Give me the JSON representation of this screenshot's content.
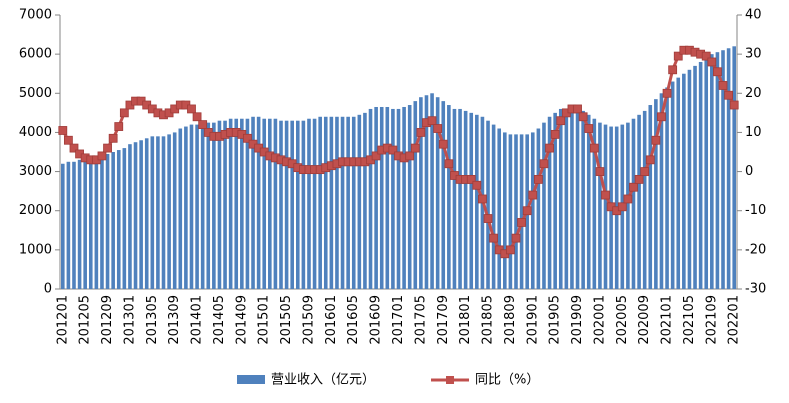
{
  "chart_data": {
    "type": "bar_line",
    "categories": [
      "201201",
      null,
      null,
      null,
      "201205",
      null,
      null,
      null,
      "201209",
      null,
      null,
      null,
      "201301",
      null,
      null,
      null,
      "201305",
      null,
      null,
      null,
      "201309",
      null,
      null,
      null,
      "201401",
      null,
      null,
      null,
      "201405",
      null,
      null,
      null,
      "201409",
      null,
      null,
      null,
      "201501",
      null,
      null,
      null,
      "201505",
      null,
      null,
      null,
      "201509",
      null,
      null,
      null,
      "201601",
      null,
      null,
      null,
      "201605",
      null,
      null,
      null,
      "201609",
      null,
      null,
      null,
      "201701",
      null,
      null,
      null,
      "201705",
      null,
      null,
      null,
      "201709",
      null,
      null,
      null,
      "201801",
      null,
      null,
      null,
      "201805",
      null,
      null,
      null,
      "201809",
      null,
      null,
      null,
      "201901",
      null,
      null,
      null,
      "201905",
      null,
      null,
      null,
      "201909",
      null,
      null,
      null,
      "202001",
      null,
      null,
      null,
      "202005",
      null,
      null,
      null,
      "202009",
      null,
      null,
      null,
      "202101",
      null,
      null,
      null,
      "202105",
      null,
      null,
      null,
      "202109",
      null,
      null,
      null,
      "202201"
    ],
    "series": [
      {
        "name": "营业收入（亿元）",
        "type": "bar",
        "color": "#4f81bd",
        "values": [
          3200,
          3250,
          3250,
          3300,
          3300,
          3300,
          3350,
          3400,
          3450,
          3500,
          3550,
          3600,
          3700,
          3750,
          3800,
          3850,
          3900,
          3900,
          3900,
          3950,
          4000,
          4100,
          4150,
          4200,
          4200,
          4200,
          4250,
          4250,
          4300,
          4300,
          4350,
          4350,
          4350,
          4350,
          4400,
          4400,
          4350,
          4350,
          4350,
          4300,
          4300,
          4300,
          4300,
          4300,
          4350,
          4350,
          4400,
          4400,
          4400,
          4400,
          4400,
          4400,
          4400,
          4450,
          4500,
          4600,
          4650,
          4650,
          4650,
          4600,
          4600,
          4650,
          4700,
          4800,
          4900,
          4950,
          5000,
          4900,
          4800,
          4700,
          4600,
          4600,
          4550,
          4500,
          4450,
          4400,
          4300,
          4200,
          4100,
          4000,
          3950,
          3950,
          3950,
          3950,
          4000,
          4100,
          4250,
          4400,
          4500,
          4600,
          4600,
          4650,
          4600,
          4550,
          4450,
          4350,
          4250,
          4200,
          4150,
          4150,
          4200,
          4250,
          4350,
          4450,
          4550,
          4700,
          4850,
          5000,
          5150,
          5300,
          5400,
          5500,
          5600,
          5700,
          5800,
          5900,
          6000,
          6050,
          6100,
          6150,
          6200
        ]
      },
      {
        "name": "同比（%）",
        "type": "line",
        "axis": "y2",
        "color": "#c0504d",
        "values": [
          10.5,
          8,
          6,
          4.5,
          3.5,
          3,
          3,
          4,
          6,
          8.5,
          11.5,
          15,
          17,
          18,
          18,
          17,
          16,
          15,
          14.5,
          15,
          16,
          17,
          17,
          16,
          14,
          12,
          10,
          9,
          9,
          9.5,
          10,
          10,
          9.5,
          8.5,
          7,
          6,
          5,
          4,
          3.5,
          3,
          2.5,
          2,
          1,
          0.5,
          0.5,
          0.5,
          0.5,
          1,
          1.5,
          2,
          2.5,
          2.5,
          2.5,
          2.5,
          2.5,
          3,
          4,
          5.5,
          6,
          5.5,
          4,
          3.5,
          4,
          6,
          10,
          12.5,
          13,
          11,
          7,
          2,
          -1,
          -2,
          -2,
          -2,
          -3.5,
          -7,
          -12,
          -17,
          -20,
          -21,
          -20,
          -17,
          -13,
          -10,
          -6,
          -2,
          2,
          6,
          9.5,
          13,
          15,
          16,
          16,
          14,
          11,
          6,
          0,
          -6,
          -9,
          -10,
          -9,
          -7,
          -4,
          -2,
          0,
          3,
          8,
          14,
          20,
          26,
          29.5,
          31,
          31,
          30.5,
          30,
          29.5,
          28,
          25.5,
          22,
          19.5,
          17
        ]
      }
    ],
    "ylim": [
      0,
      7000
    ],
    "yticks": [
      0,
      1000,
      2000,
      3000,
      4000,
      5000,
      6000,
      7000
    ],
    "y2lim": [
      -30,
      40
    ],
    "y2ticks": [
      -30,
      -20,
      -10,
      0,
      10,
      20,
      30,
      40
    ]
  }
}
